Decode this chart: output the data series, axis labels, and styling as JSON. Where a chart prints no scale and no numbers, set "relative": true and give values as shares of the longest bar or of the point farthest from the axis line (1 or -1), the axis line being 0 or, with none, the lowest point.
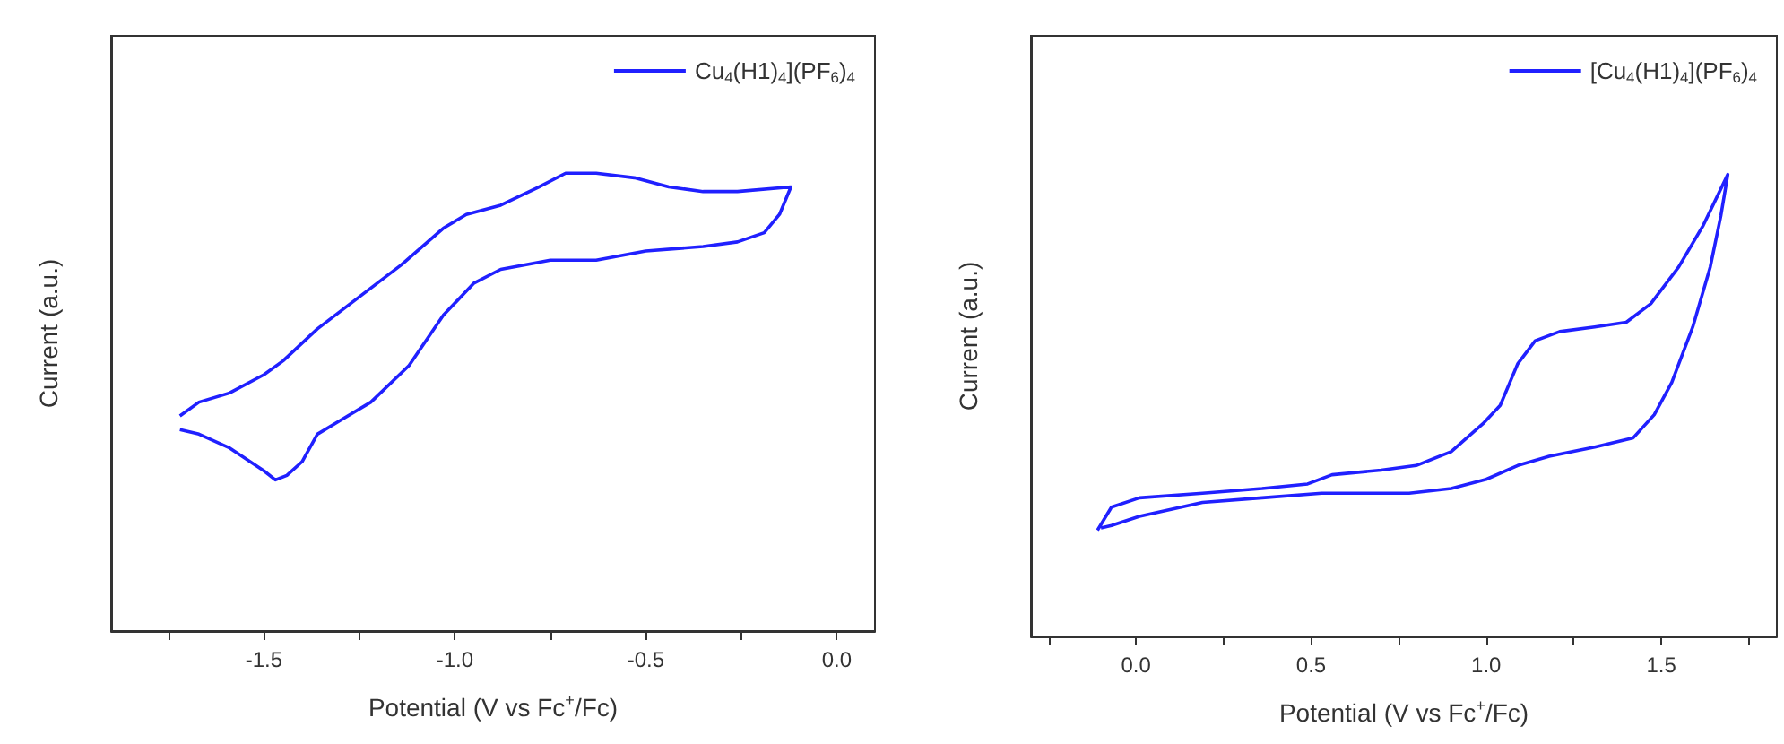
{
  "chart_data": [
    {
      "type": "line",
      "relative": true,
      "marker": "none",
      "legend": "top right",
      "tick_labels": "x",
      "xlabel": "Potential (V vs Fc$^{+}$/Fc)",
      "ylabel": "Current (a.u.)",
      "xlim": [
        -1.9,
        0.1
      ],
      "xticks": [
        {
          "value": -1.75,
          "label": null
        },
        -1.5,
        {
          "value": -1.25,
          "label": null
        },
        {
          "value": -1,
          "label": "-1.0"
        },
        {
          "value": -0.75,
          "label": null
        },
        -0.5,
        {
          "value": -0.25,
          "label": null
        },
        {
          "value": 0,
          "label": "0.0"
        }
      ],
      "series": [
        {
          "name": "Cu$_{4}$(H1)$_{4}$](PF$_{6}$)$_{4}$",
          "color": "#2020ff",
          "x": [
            -1.72,
            -1.67,
            -1.59,
            -1.5,
            -1.45,
            -1.36,
            -1.25,
            -1.14,
            -1.03,
            -0.97,
            -0.88,
            -0.78,
            -0.71,
            -0.63,
            -0.53,
            -0.44,
            -0.35,
            -0.26,
            -0.12,
            -0.15,
            -0.19,
            -0.26,
            -0.35,
            -0.5,
            -0.63,
            -0.75,
            -0.88,
            -0.95,
            -1.03,
            -1.12,
            -1.22,
            -1.3,
            -1.36,
            -1.4,
            -1.44,
            -1.47,
            -1.5,
            -1.59,
            -1.67,
            -1.72
          ],
          "values": [
            0.47,
            0.5,
            0.52,
            0.56,
            0.59,
            0.66,
            0.73,
            0.8,
            0.88,
            0.91,
            0.93,
            0.97,
            1.0,
            1.0,
            0.99,
            0.97,
            0.96,
            0.96,
            0.97,
            0.91,
            0.87,
            0.85,
            0.84,
            0.83,
            0.81,
            0.81,
            0.79,
            0.76,
            0.69,
            0.58,
            0.5,
            0.46,
            0.43,
            0.37,
            0.34,
            0.33,
            0.35,
            0.4,
            0.43,
            0.44
          ]
        }
      ]
    },
    {
      "type": "line",
      "relative": true,
      "marker": "none",
      "legend": "top right",
      "tick_labels": "x",
      "xlabel": "Potential (V vs Fc$^{+}$/Fc)",
      "ylabel": "Current (a.u.)",
      "xlim": [
        -0.3,
        1.83
      ],
      "xticks": [
        {
          "value": -0.25,
          "label": null
        },
        {
          "value": 0,
          "label": "0.0"
        },
        {
          "value": 0.25,
          "label": null
        },
        0.5,
        {
          "value": 0.75,
          "label": null
        },
        {
          "value": 1,
          "label": "1.0"
        },
        {
          "value": 1.25,
          "label": null
        },
        1.5,
        {
          "value": 1.75,
          "label": null
        }
      ],
      "series": [
        {
          "name": "[Cu$_{4}$(H1)$_{4}$](PF$_{6}$)$_{4}$",
          "color": "#2020ff",
          "x": [
            -0.11,
            -0.07,
            0.01,
            0.19,
            0.36,
            0.49,
            0.56,
            0.7,
            0.8,
            0.9,
            0.99,
            1.04,
            1.09,
            1.14,
            1.21,
            1.31,
            1.4,
            1.47,
            1.55,
            1.62,
            1.69,
            1.67,
            1.64,
            1.59,
            1.53,
            1.48,
            1.42,
            1.31,
            1.18,
            1.09,
            1.0,
            0.9,
            0.78,
            0.53,
            0.36,
            0.19,
            0.01,
            -0.07,
            -0.1
          ],
          "values": [
            0.23,
            0.28,
            0.3,
            0.31,
            0.32,
            0.33,
            0.35,
            0.36,
            0.37,
            0.4,
            0.46,
            0.5,
            0.59,
            0.64,
            0.66,
            0.67,
            0.68,
            0.72,
            0.8,
            0.89,
            1.0,
            0.91,
            0.8,
            0.67,
            0.55,
            0.48,
            0.43,
            0.41,
            0.39,
            0.37,
            0.34,
            0.32,
            0.31,
            0.31,
            0.3,
            0.29,
            0.26,
            0.24,
            0.235
          ]
        }
      ]
    }
  ]
}
